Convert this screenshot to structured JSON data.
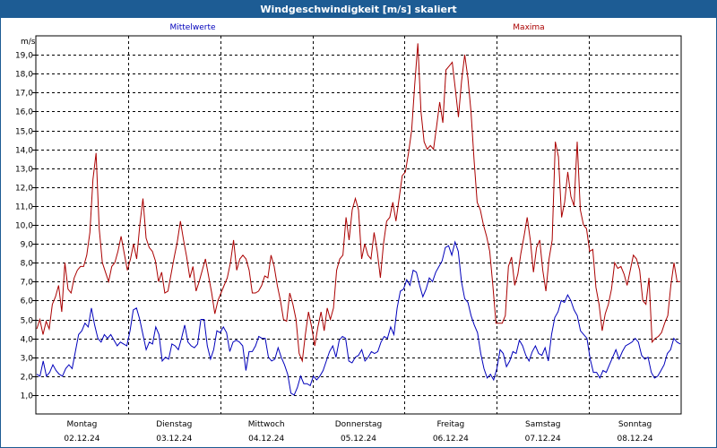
{
  "window": {
    "title": "Windgeschwindigkeit [m/s] skaliert"
  },
  "colors": {
    "titlebar": "#1d5c94",
    "mean": "#0000bb",
    "max": "#aa0000",
    "grid": "#000000"
  },
  "chart_data": {
    "type": "line",
    "title": "Windgeschwindigkeit [m/s] skaliert",
    "ylabel": "m/s",
    "ylim": [
      0,
      20
    ],
    "yticks": [
      "1,0",
      "2,0",
      "3,0",
      "4,0",
      "5,0",
      "6,0",
      "7,0",
      "8,0",
      "9,0",
      "10,0",
      "11,0",
      "12,0",
      "13,0",
      "14,0",
      "15,0",
      "16,0",
      "17,0",
      "18,0",
      "19,0"
    ],
    "grid": true,
    "legend_placement": "top",
    "xlabels": [
      {
        "day": "Montag",
        "date": "02.12.24"
      },
      {
        "day": "Dienstag",
        "date": "03.12.24"
      },
      {
        "day": "Mittwoch",
        "date": "04.12.24"
      },
      {
        "day": "Donnerstag",
        "date": "05.12.24"
      },
      {
        "day": "Freitag",
        "date": "06.12.24"
      },
      {
        "day": "Samstag",
        "date": "07.12.24"
      },
      {
        "day": "Sonntag",
        "date": "08.12.24"
      }
    ],
    "series": [
      {
        "name": "Mittelwerte",
        "color": "#0000bb",
        "values": [
          2.1,
          2.0,
          2.8,
          2.0,
          2.2,
          2.6,
          2.3,
          2.1,
          2.0,
          2.4,
          2.6,
          2.4,
          3.3,
          4.2,
          4.4,
          4.8,
          4.6,
          5.6,
          4.7,
          4.0,
          3.8,
          4.2,
          4.0,
          4.2,
          3.9,
          3.6,
          3.8,
          3.7,
          3.6,
          4.4,
          5.5,
          5.6,
          5.0,
          4.2,
          3.4,
          3.8,
          3.7,
          4.6,
          4.2,
          2.8,
          3.0,
          2.9,
          3.7,
          3.6,
          3.4,
          4.0,
          4.7,
          3.8,
          3.6,
          3.5,
          3.7,
          5.0,
          5.0,
          3.6,
          2.9,
          3.4,
          4.4,
          4.3,
          4.6,
          4.3,
          3.3,
          3.8,
          3.9,
          3.8,
          3.6,
          2.3,
          3.3,
          3.3,
          3.6,
          4.1,
          4.0,
          4.0,
          3.0,
          2.8,
          2.9,
          3.5,
          3.0,
          2.6,
          2.1,
          1.1,
          1.0,
          1.4,
          2.0,
          1.6,
          1.6,
          1.5,
          2.0,
          1.8,
          2.0,
          2.3,
          2.8,
          3.3,
          3.6,
          3.0,
          3.9,
          4.1,
          4.0,
          2.8,
          2.7,
          3.0,
          3.1,
          3.4,
          2.8,
          3.0,
          3.3,
          3.2,
          3.3,
          3.8,
          4.1,
          4.0,
          4.6,
          4.2,
          5.6,
          6.5,
          6.6,
          7.1,
          6.8,
          7.6,
          7.5,
          6.8,
          6.2,
          6.6,
          7.2,
          7.0,
          7.5,
          7.8,
          8.1,
          8.8,
          8.9,
          8.4,
          9.1,
          8.6,
          7.0,
          6.1,
          5.9,
          5.2,
          4.7,
          4.3,
          3.2,
          2.4,
          1.9,
          2.1,
          1.8,
          2.4,
          3.4,
          3.2,
          2.5,
          2.8,
          3.3,
          3.2,
          3.9,
          3.6,
          3.1,
          2.8,
          3.3,
          3.6,
          3.2,
          3.1,
          3.5,
          2.8,
          4.2,
          5.1,
          5.4,
          6.0,
          5.9,
          6.3,
          6.0,
          5.5,
          5.2,
          4.4,
          4.2,
          4.0,
          2.9,
          2.2,
          2.2,
          1.9,
          2.3,
          2.2,
          2.6,
          3.0,
          3.4,
          2.9,
          3.3,
          3.6,
          3.7,
          3.8,
          4.0,
          3.8,
          3.1,
          2.9,
          3.0,
          2.2,
          1.9,
          2.0,
          2.3,
          2.6,
          3.2,
          3.4,
          4.0,
          3.8,
          3.7
        ]
      },
      {
        "name": "Maxima",
        "color": "#aa0000",
        "values": [
          4.5,
          5.0,
          4.2,
          4.9,
          4.5,
          5.8,
          6.2,
          6.8,
          5.4,
          8.0,
          6.6,
          6.4,
          7.2,
          7.6,
          7.8,
          7.8,
          8.4,
          9.6,
          12.4,
          13.8,
          9.8,
          8.0,
          7.5,
          7.0,
          7.8,
          8.0,
          8.6,
          9.4,
          8.5,
          7.6,
          8.2,
          9.0,
          8.2,
          10.0,
          11.4,
          9.3,
          8.8,
          8.6,
          8.1,
          7.0,
          7.5,
          6.4,
          6.5,
          7.4,
          8.3,
          9.1,
          10.2,
          9.2,
          8.3,
          7.2,
          7.8,
          6.5,
          7.0,
          7.6,
          8.2,
          7.3,
          6.4,
          5.3,
          6.0,
          6.4,
          6.8,
          7.2,
          8.0,
          9.2,
          7.6,
          8.2,
          8.4,
          8.2,
          7.6,
          6.4,
          6.4,
          6.5,
          6.8,
          7.3,
          7.2,
          8.4,
          7.8,
          6.8,
          6.0,
          5.0,
          4.9,
          6.4,
          5.8,
          5.0,
          3.2,
          2.8,
          4.2,
          5.4,
          4.6,
          3.6,
          4.6,
          5.4,
          4.4,
          5.6,
          5.0,
          5.6,
          7.6,
          8.2,
          8.4,
          10.4,
          9.2,
          10.8,
          11.4,
          10.8,
          8.2,
          9.0,
          8.4,
          8.2,
          9.6,
          8.6,
          7.2,
          9.0,
          10.2,
          10.4,
          11.2,
          10.2,
          11.4,
          12.6,
          12.8,
          13.8,
          15.0,
          17.4,
          19.6,
          16.0,
          14.4,
          14.0,
          14.2,
          14.0,
          15.2,
          16.5,
          15.4,
          18.2,
          18.4,
          18.6,
          17.2,
          15.7,
          17.6,
          19.0,
          17.8,
          16.0,
          13.4,
          11.2,
          10.8,
          10.0,
          9.4,
          8.6,
          6.8,
          4.8,
          4.8,
          4.8,
          5.2,
          7.8,
          8.3,
          6.8,
          7.4,
          8.5,
          9.4,
          10.4,
          9.2,
          7.5,
          8.8,
          9.2,
          7.6,
          6.5,
          8.2,
          9.2,
          14.4,
          13.6,
          10.4,
          11.2,
          12.8,
          11.5,
          11.0,
          14.4,
          10.8,
          10.0,
          9.8,
          8.6,
          8.7,
          6.7,
          5.8,
          4.4,
          5.3,
          5.8,
          6.6,
          8.0,
          7.7,
          7.8,
          7.4,
          6.8,
          7.6,
          8.4,
          8.2,
          7.6,
          6.0,
          5.8,
          7.2,
          3.8,
          4.0,
          4.1,
          4.3,
          4.8,
          5.2,
          6.8,
          8.0,
          7.0,
          7.0
        ]
      }
    ]
  }
}
